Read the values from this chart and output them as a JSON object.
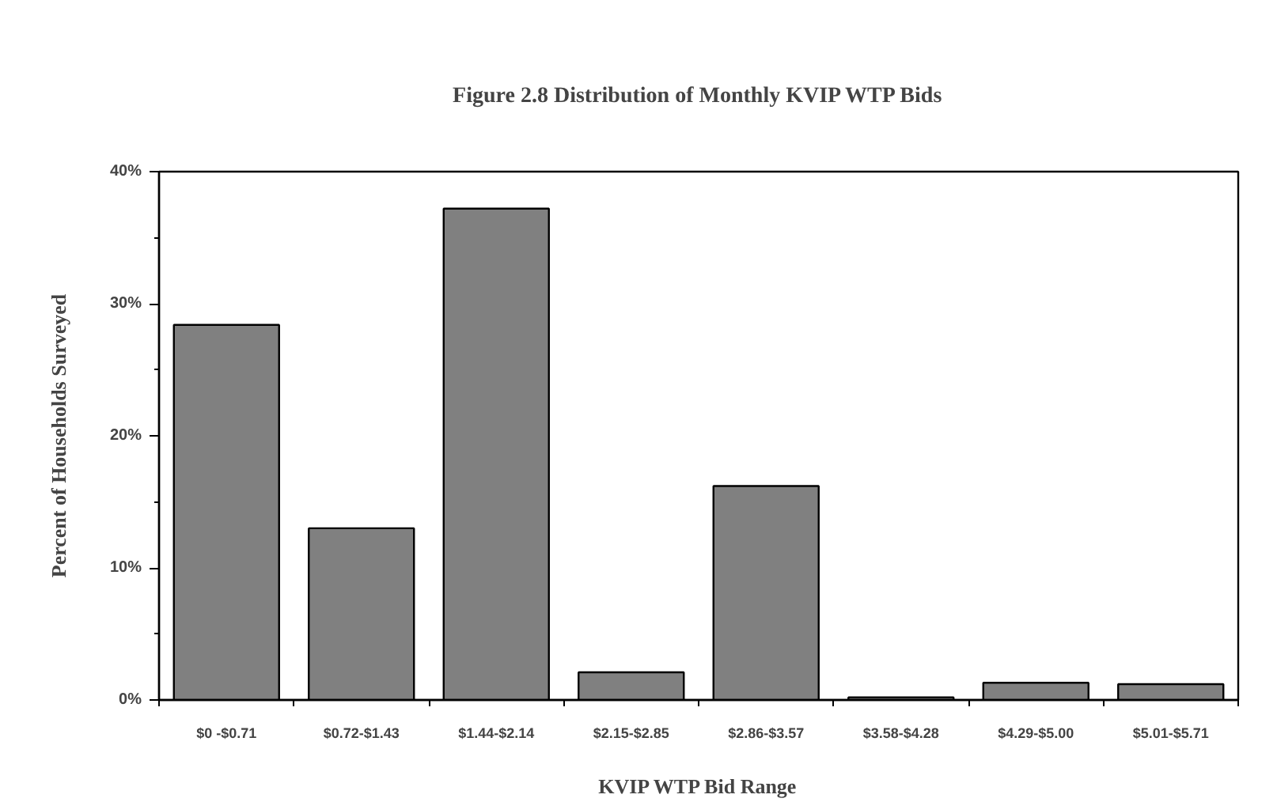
{
  "chart_data": {
    "type": "bar",
    "title": "Figure 2.8 Distribution of Monthly KVIP WTP Bids",
    "xlabel": "KVIP WTP Bid Range",
    "ylabel": "Percent of Households Surveyed",
    "categories": [
      "$0 -$0.71",
      "$0.72-$1.43",
      "$1.44-$2.14",
      "$2.15-$2.85",
      "$2.86-$3.57",
      "$3.58-$4.28",
      "$4.29-$5.00",
      "$5.01-$5.71"
    ],
    "values": [
      28.4,
      13.0,
      37.2,
      2.1,
      16.2,
      0.2,
      1.3,
      1.2
    ],
    "color": "#808080",
    "ylim": [
      0,
      40
    ],
    "yticks": [
      {
        "value": 0,
        "label": "0%"
      },
      {
        "value": 5,
        "label": null
      },
      {
        "value": 10,
        "label": "10%"
      },
      {
        "value": 15,
        "label": null
      },
      {
        "value": 20,
        "label": "20%"
      },
      {
        "value": 25,
        "label": null
      },
      {
        "value": 30,
        "label": "30%"
      },
      {
        "value": 35,
        "label": null
      },
      {
        "value": 40,
        "label": "40%"
      }
    ],
    "grid": false
  }
}
